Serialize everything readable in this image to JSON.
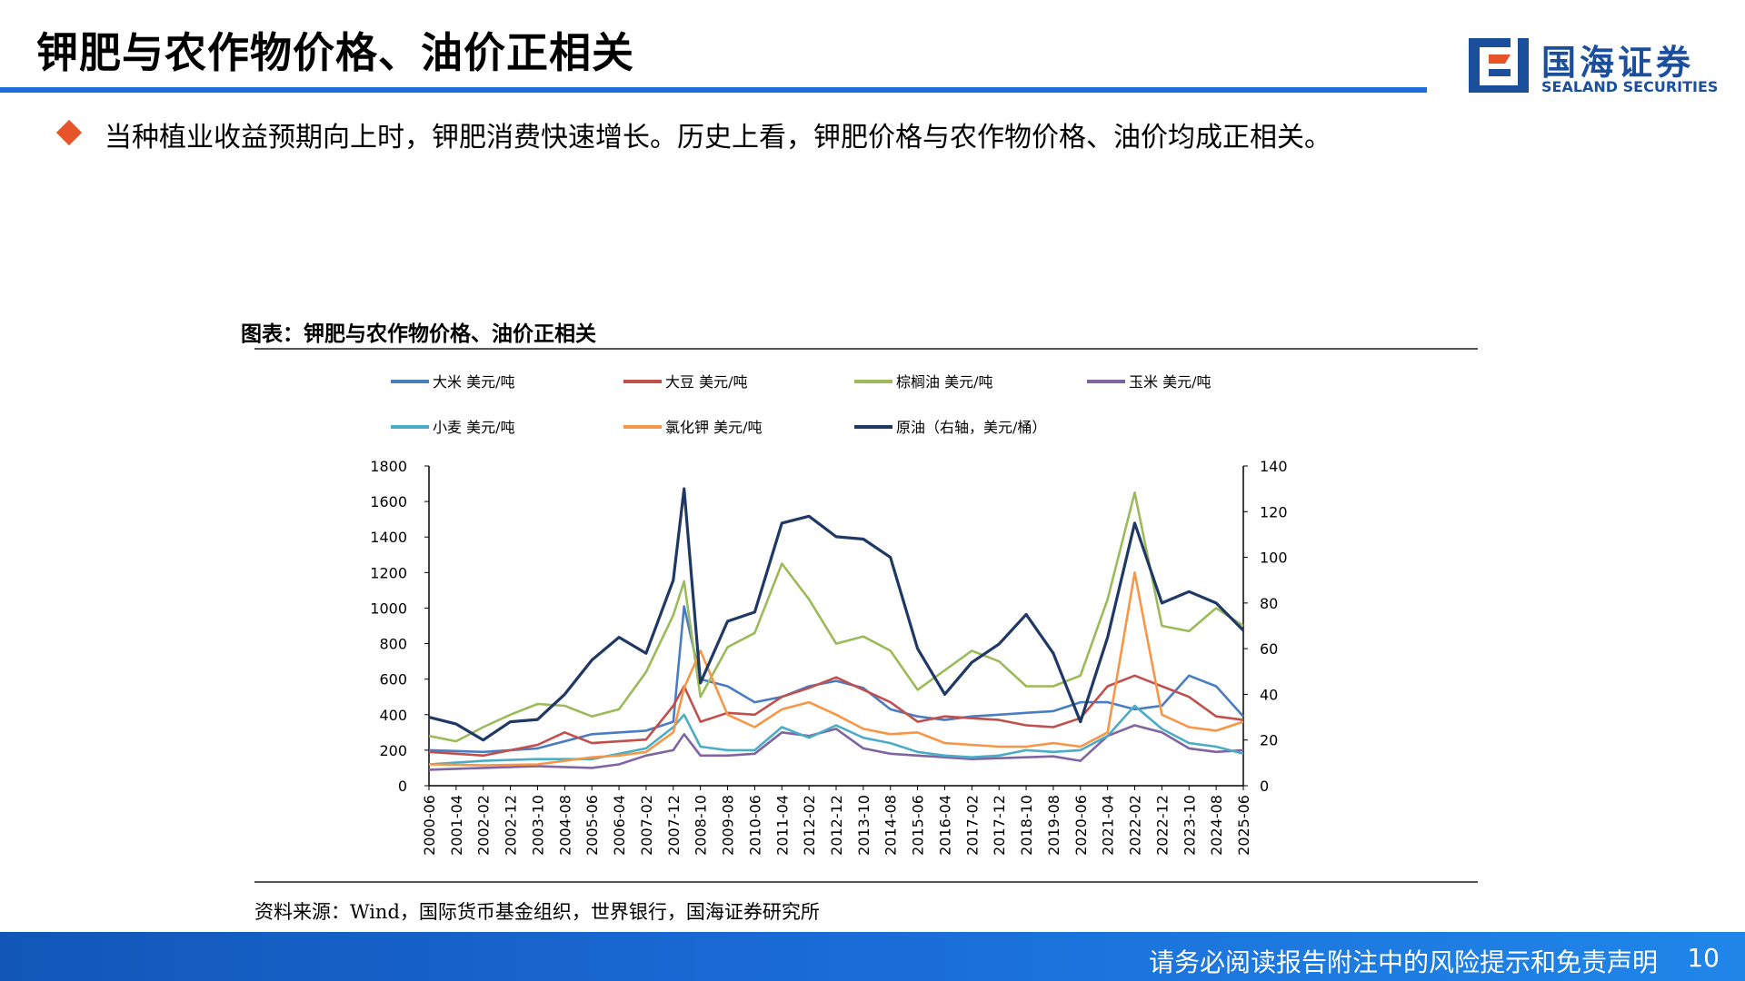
{
  "slide": {
    "title": "钾肥与农作物价格、油价正相关",
    "bullet": "当种植业收益预期向上时，钾肥消费快速增长。历史上看，钾肥价格与农作物价格、油价均成正相关。",
    "logo_cn": "国海证券",
    "logo_en": "SEALAND SECURITIES",
    "brand_color": "#1b4f9c",
    "accent_color": "#e8542a",
    "footer_text": "请务必阅读报告附注中的风险提示和免责声明",
    "page_number": "10"
  },
  "chart_caption": "图表：钾肥与农作物价格、油价正相关",
  "source": "资料来源：Wind，国际货币基金组织，世界银行，国海证券研究所",
  "chart_data": {
    "type": "line",
    "legend_position": "top",
    "grid": false,
    "x_ticks": [
      "2000-06",
      "2001-04",
      "2002-02",
      "2002-12",
      "2003-10",
      "2004-08",
      "2005-06",
      "2006-04",
      "2007-02",
      "2007-12",
      "2008-10",
      "2009-08",
      "2010-06",
      "2011-04",
      "2012-02",
      "2012-12",
      "2013-10",
      "2014-08",
      "2015-06",
      "2016-04",
      "2017-02",
      "2017-12",
      "2018-10",
      "2019-08",
      "2020-06",
      "2021-04",
      "2022-02",
      "2022-12",
      "2023-10",
      "2024-08",
      "2025-06"
    ],
    "y_left": {
      "ticks": [
        0,
        200,
        400,
        600,
        800,
        1000,
        1200,
        1400,
        1600,
        1800
      ],
      "range": [
        0,
        1800
      ]
    },
    "y_right": {
      "ticks": [
        0,
        20,
        40,
        60,
        80,
        100,
        120,
        140
      ],
      "range": [
        0,
        140
      ]
    },
    "series": [
      {
        "name": "大米 美元/吨",
        "color": "#4a7cc4",
        "axis": "left",
        "x": [
          "2000-06",
          "2002-02",
          "2003-10",
          "2005-06",
          "2007-02",
          "2007-12",
          "2008-04",
          "2008-10",
          "2009-08",
          "2010-06",
          "2011-04",
          "2012-02",
          "2012-12",
          "2013-10",
          "2014-08",
          "2015-06",
          "2016-04",
          "2017-02",
          "2017-12",
          "2018-10",
          "2019-08",
          "2020-06",
          "2021-04",
          "2022-02",
          "2022-12",
          "2023-10",
          "2024-08",
          "2025-06"
        ],
        "values": [
          200,
          190,
          210,
          290,
          310,
          360,
          1010,
          600,
          560,
          470,
          500,
          560,
          590,
          550,
          430,
          390,
          370,
          390,
          400,
          410,
          420,
          470,
          470,
          430,
          450,
          620,
          560,
          390
        ]
      },
      {
        "name": "大豆 美元/吨",
        "color": "#c0504d",
        "axis": "left",
        "x": [
          "2000-06",
          "2002-02",
          "2003-10",
          "2004-08",
          "2005-06",
          "2007-02",
          "2007-12",
          "2008-04",
          "2008-10",
          "2009-08",
          "2010-06",
          "2011-04",
          "2012-02",
          "2012-12",
          "2013-10",
          "2014-08",
          "2015-06",
          "2016-04",
          "2017-02",
          "2017-12",
          "2018-10",
          "2019-08",
          "2020-06",
          "2021-04",
          "2022-02",
          "2022-12",
          "2023-10",
          "2024-08",
          "2025-06"
        ],
        "values": [
          190,
          170,
          230,
          300,
          240,
          260,
          450,
          560,
          360,
          410,
          400,
          500,
          550,
          610,
          540,
          470,
          360,
          390,
          380,
          370,
          340,
          330,
          380,
          560,
          620,
          560,
          500,
          390,
          370
        ]
      },
      {
        "name": "棕榈油 美元/吨",
        "color": "#9bbb59",
        "axis": "left",
        "x": [
          "2000-06",
          "2001-04",
          "2002-02",
          "2002-12",
          "2003-10",
          "2004-08",
          "2005-06",
          "2006-04",
          "2007-02",
          "2007-12",
          "2008-04",
          "2008-10",
          "2009-08",
          "2010-06",
          "2011-04",
          "2012-02",
          "2012-12",
          "2013-10",
          "2014-08",
          "2015-06",
          "2016-04",
          "2017-02",
          "2017-12",
          "2018-10",
          "2019-08",
          "2020-06",
          "2021-04",
          "2022-02",
          "2022-12",
          "2023-10",
          "2024-08",
          "2025-06"
        ],
        "values": [
          280,
          250,
          330,
          400,
          460,
          450,
          390,
          430,
          640,
          960,
          1150,
          500,
          780,
          860,
          1250,
          1050,
          800,
          840,
          760,
          540,
          650,
          760,
          700,
          560,
          560,
          620,
          1050,
          1650,
          900,
          870,
          1000,
          900
        ]
      },
      {
        "name": "玉米 美元/吨",
        "color": "#8064a2",
        "axis": "left",
        "x": [
          "2000-06",
          "2002-02",
          "2003-10",
          "2005-06",
          "2006-04",
          "2007-02",
          "2007-12",
          "2008-04",
          "2008-10",
          "2009-08",
          "2010-06",
          "2011-04",
          "2012-02",
          "2012-12",
          "2013-10",
          "2014-08",
          "2015-06",
          "2016-04",
          "2017-02",
          "2017-12",
          "2018-10",
          "2019-08",
          "2020-06",
          "2021-04",
          "2022-02",
          "2022-12",
          "2023-10",
          "2024-08",
          "2025-06"
        ],
        "values": [
          90,
          100,
          110,
          100,
          120,
          170,
          200,
          290,
          170,
          170,
          180,
          300,
          280,
          320,
          210,
          180,
          170,
          160,
          150,
          155,
          160,
          165,
          140,
          280,
          340,
          300,
          210,
          190,
          200
        ]
      },
      {
        "name": "小麦 美元/吨",
        "color": "#4bacc6",
        "axis": "left",
        "x": [
          "2000-06",
          "2002-02",
          "2003-10",
          "2005-06",
          "2006-04",
          "2007-02",
          "2007-12",
          "2008-04",
          "2008-10",
          "2009-08",
          "2010-06",
          "2011-04",
          "2012-02",
          "2012-12",
          "2013-10",
          "2014-08",
          "2015-06",
          "2016-04",
          "2017-02",
          "2017-12",
          "2018-10",
          "2019-08",
          "2020-06",
          "2021-04",
          "2022-02",
          "2022-12",
          "2023-10",
          "2024-08",
          "2025-06"
        ],
        "values": [
          120,
          140,
          150,
          150,
          180,
          210,
          330,
          400,
          220,
          200,
          200,
          330,
          270,
          340,
          270,
          240,
          190,
          170,
          160,
          170,
          200,
          190,
          200,
          280,
          450,
          320,
          240,
          220,
          180
        ]
      },
      {
        "name": "氯化钾 美元/吨",
        "color": "#f79646",
        "axis": "left",
        "x": [
          "2000-06",
          "2002-02",
          "2003-10",
          "2005-06",
          "2006-04",
          "2007-02",
          "2007-12",
          "2008-04",
          "2008-10",
          "2009-08",
          "2010-06",
          "2011-04",
          "2012-02",
          "2012-12",
          "2013-10",
          "2014-08",
          "2015-06",
          "2016-04",
          "2017-02",
          "2017-12",
          "2018-10",
          "2019-08",
          "2020-06",
          "2021-04",
          "2022-02",
          "2022-12",
          "2023-10",
          "2024-08",
          "2025-06"
        ],
        "values": [
          120,
          115,
          120,
          160,
          170,
          190,
          300,
          550,
          760,
          400,
          330,
          430,
          470,
          400,
          320,
          290,
          300,
          240,
          230,
          220,
          220,
          240,
          220,
          300,
          1200,
          400,
          330,
          310,
          360
        ]
      },
      {
        "name": "原油（右轴，美元/桶）",
        "color": "#1f3864",
        "axis": "right",
        "x": [
          "2000-06",
          "2001-04",
          "2002-02",
          "2002-12",
          "2003-10",
          "2004-08",
          "2005-06",
          "2006-04",
          "2007-02",
          "2007-12",
          "2008-04",
          "2008-10",
          "2009-08",
          "2010-06",
          "2011-04",
          "2012-02",
          "2012-12",
          "2013-10",
          "2014-08",
          "2015-06",
          "2016-04",
          "2017-02",
          "2017-12",
          "2018-10",
          "2019-08",
          "2020-06",
          "2021-04",
          "2022-02",
          "2022-12",
          "2023-10",
          "2024-08",
          "2025-06"
        ],
        "values": [
          30,
          27,
          20,
          28,
          29,
          40,
          55,
          65,
          58,
          90,
          130,
          45,
          72,
          76,
          115,
          118,
          109,
          108,
          100,
          60,
          40,
          54,
          62,
          75,
          58,
          28,
          65,
          115,
          80,
          85,
          80,
          68
        ]
      }
    ]
  }
}
